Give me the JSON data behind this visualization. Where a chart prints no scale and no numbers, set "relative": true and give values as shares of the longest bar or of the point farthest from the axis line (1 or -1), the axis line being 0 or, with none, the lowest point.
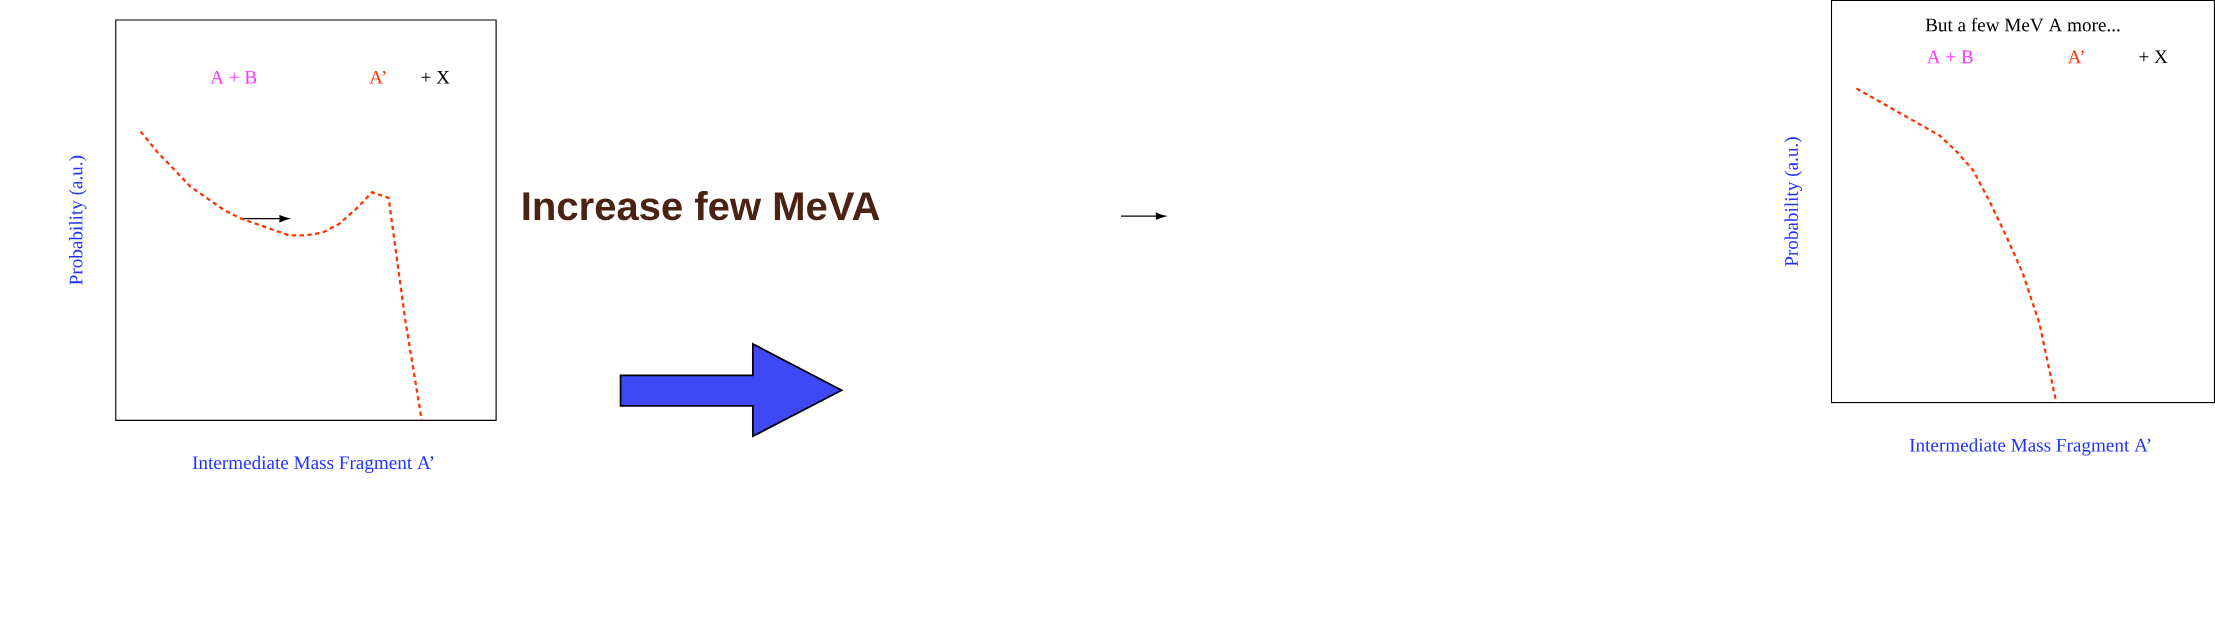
{
  "chart_data": [
    {
      "type": "line",
      "relative": true,
      "ylabel": "Probability (a.u.)",
      "xlabel": "Intermediate Mass Fragment  A’",
      "marker": "none",
      "line_style": "dashed",
      "annotations": [
        "A + B",
        "A’",
        "+ X"
      ],
      "categories": [
        null,
        null,
        null,
        null,
        null,
        null,
        null,
        null,
        null,
        null,
        null,
        null,
        null,
        null,
        null,
        null,
        null,
        null,
        null,
        null,
        null,
        null,
        null
      ],
      "series": [
        {
          "color": "#ff3300",
          "values": [
            null,
            1.0,
            0.93,
            0.87,
            0.81,
            0.77,
            0.73,
            0.7,
            0.68,
            0.66,
            0.64,
            0.64,
            0.65,
            0.68,
            0.73,
            0.79,
            0.77,
            0.35,
            0,
            null,
            null,
            null,
            null
          ]
        }
      ]
    },
    {
      "type": "other",
      "title": "Increase few MeVA"
    },
    {
      "type": "line",
      "relative": true,
      "ylabel": "Probability (a.u.)",
      "xlabel": "Intermediate Mass Fragment  A’",
      "marker": "none",
      "line_style": "dashed",
      "annotations": [
        "But a few MeV A more...",
        "A + B",
        "A’",
        "+ X"
      ],
      "categories": [
        null,
        null,
        null,
        null,
        null,
        null,
        null,
        null,
        null,
        null,
        null,
        null,
        null,
        null,
        null,
        null,
        null,
        null,
        null,
        null,
        null,
        null,
        null
      ],
      "series": [
        {
          "color": "#ff3300",
          "values": [
            null,
            1.0,
            0.97,
            0.94,
            0.91,
            0.88,
            0.85,
            0.8,
            0.74,
            0.64,
            0.53,
            0.41,
            0.25,
            0,
            null,
            null,
            null,
            null,
            null,
            null,
            null,
            null,
            null
          ]
        }
      ]
    }
  ]
}
